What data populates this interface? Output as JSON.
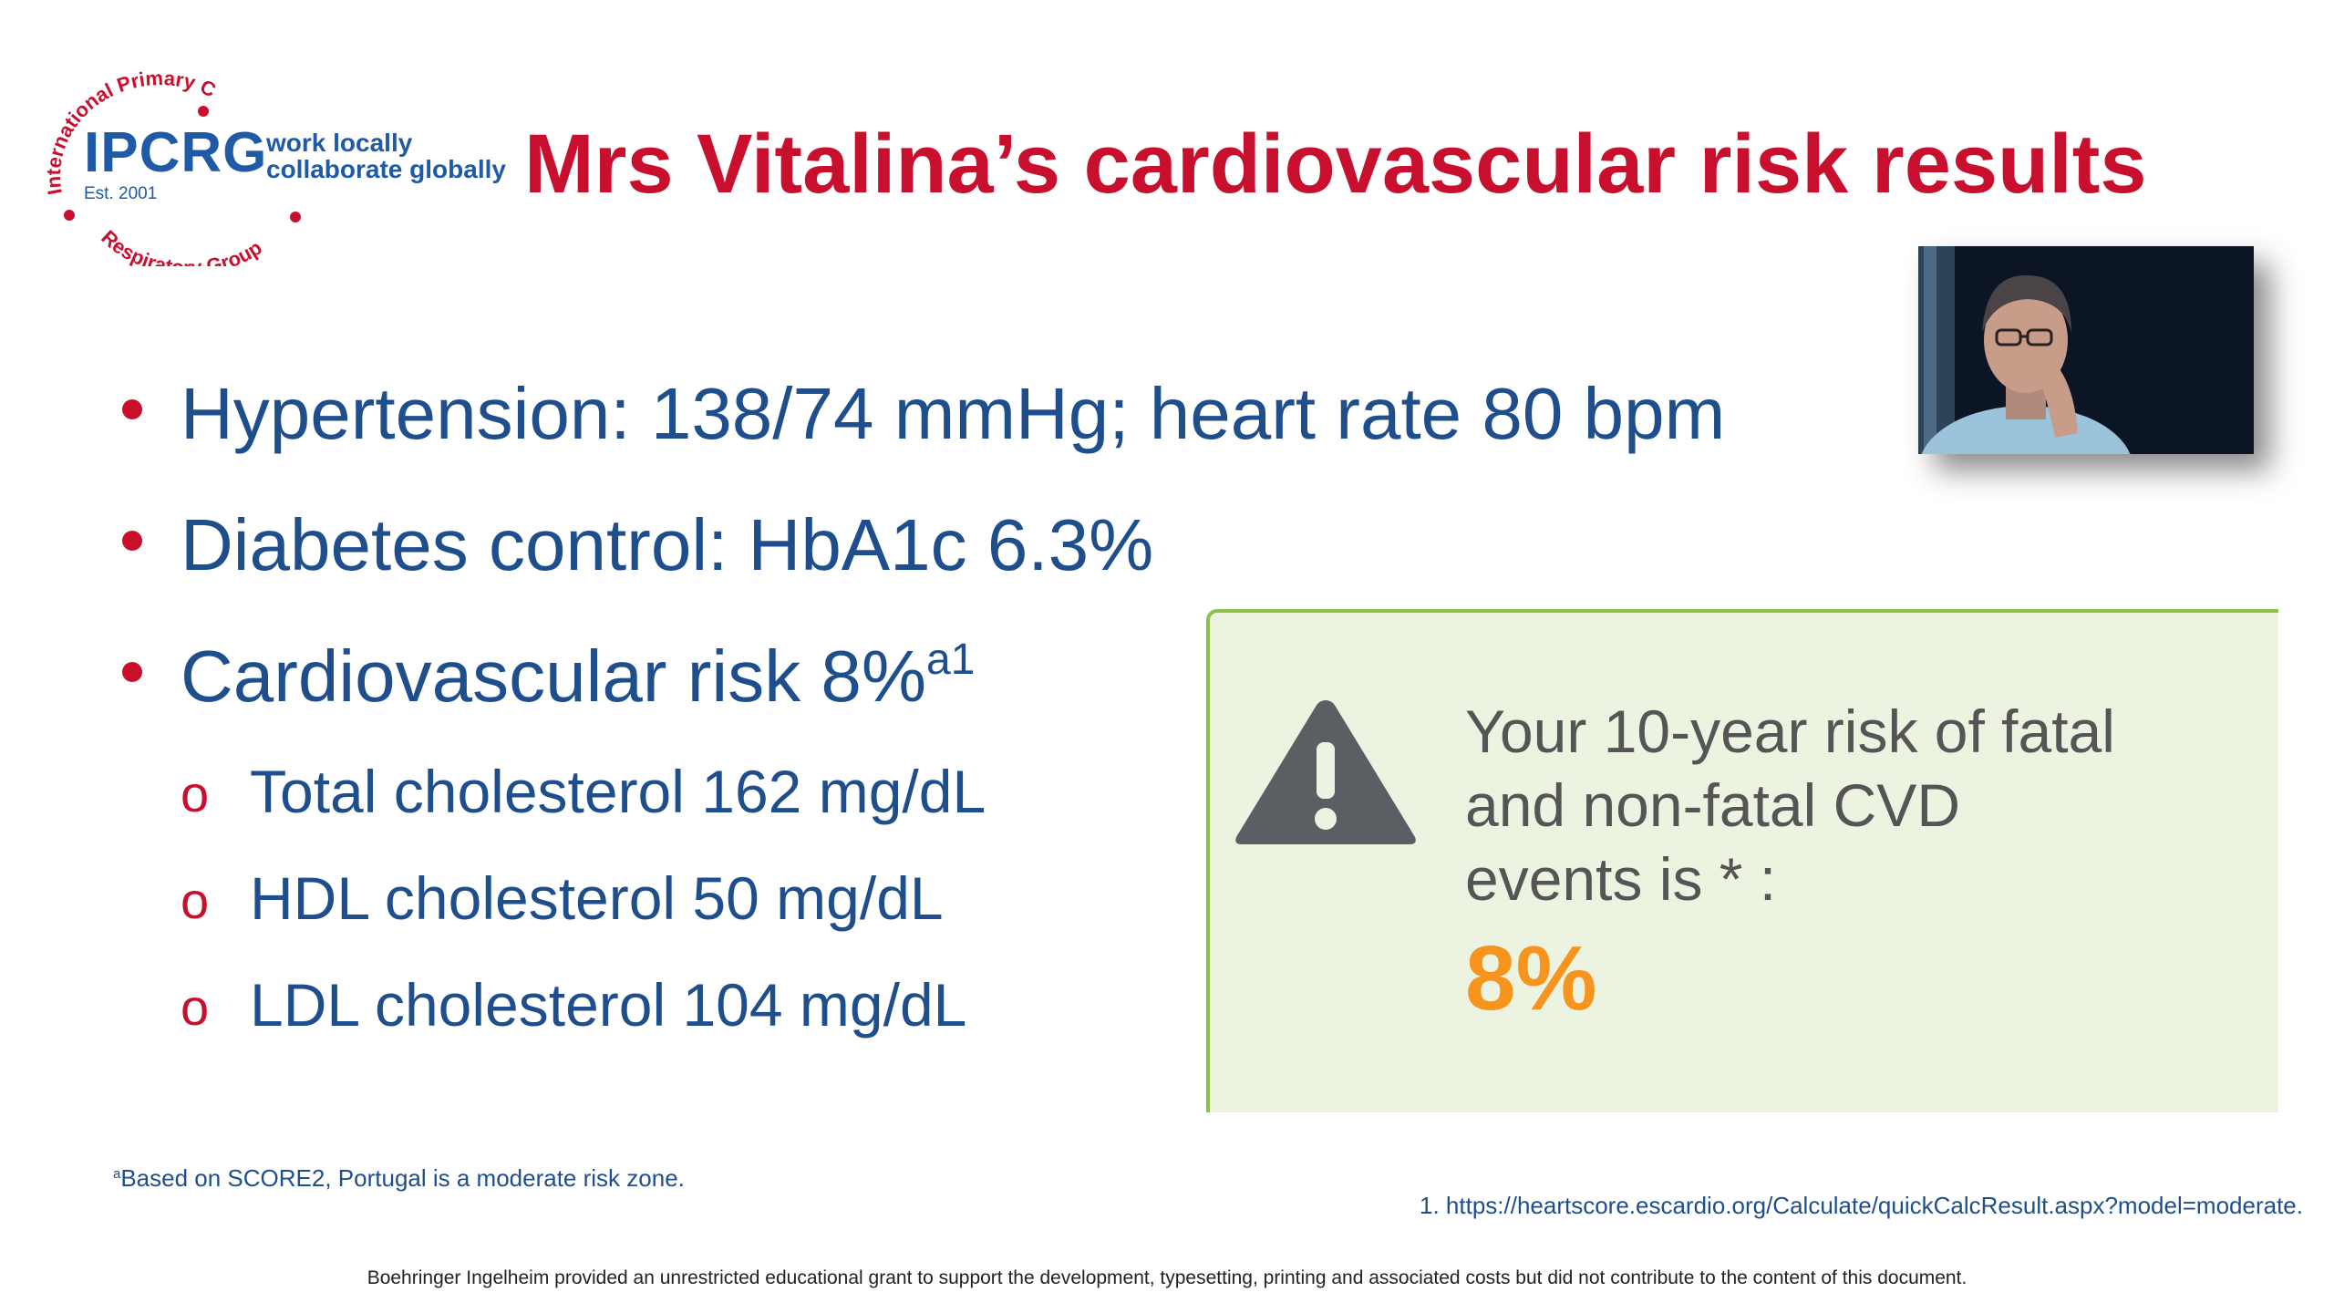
{
  "logo": {
    "acronym": "IPCRG",
    "arc_top": "International Primary Care",
    "arc_bottom": "Respiratory Group",
    "established": "Est. 2001",
    "tagline_1": "work locally",
    "tagline_2": "collaborate globally"
  },
  "title": "Mrs Vitalina’s cardiovascular risk results",
  "bullets": [
    {
      "text": "Hypertension: 138/74 mmHg; heart rate 80 bpm"
    },
    {
      "text": "Diabetes control: HbA1c 6.3%"
    },
    {
      "text": "Cardiovascular risk 8%",
      "superscript": "a1"
    }
  ],
  "sub_bullets": {
    "marker": "o",
    "items": [
      "Total cholesterol 162 mg/dL",
      "HDL cholesterol 50 mg/dL",
      "LDL cholesterol 104 mg/dL"
    ]
  },
  "result": {
    "line1": "Your 10-year risk of fatal",
    "line2": "and non-fatal CVD",
    "line3": "events is * :",
    "value": "8%",
    "value_color": "#f7941d"
  },
  "footnote": {
    "marker": "a",
    "text": "Based on SCORE2, Portugal is a moderate risk zone."
  },
  "reference": "1. https://heartscore.escardio.org/Calculate/quickCalcResult.aspx?model=moderate.",
  "disclaimer": "Boehringer Ingelheim provided an unrestricted educational grant to support the development, typesetting, printing and associated costs but did not contribute to the content of this document.",
  "colors": {
    "title": "#c8102e",
    "body_text": "#1f4e8c",
    "bullet": "#c8102e",
    "box_background": "#edf3e1",
    "box_border": "#8bc34a",
    "warning_icon": "#5a5f63"
  }
}
